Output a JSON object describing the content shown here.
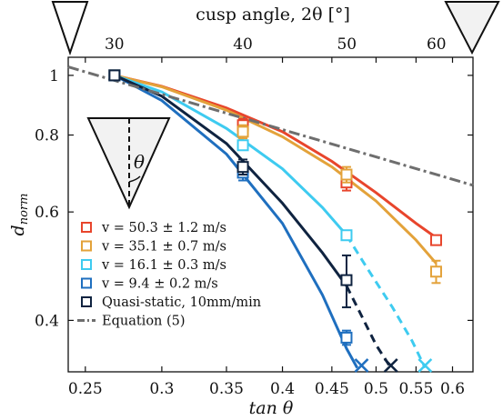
{
  "chart_data": {
    "type": "scatter",
    "title": "",
    "x_top_label": "cusp angle, 2θ [°]",
    "x_top_ticks": [
      30,
      40,
      50,
      60
    ],
    "xlabel": "tan θ",
    "ylabel": "d_norm",
    "ylabel_main": "d",
    "ylabel_sub": "norm",
    "xscale": "log",
    "yscale": "log",
    "xlim": [
      0.24,
      0.63
    ],
    "ylim": [
      0.33,
      1.07
    ],
    "x_ticks": [
      0.25,
      0.3,
      0.35,
      0.4,
      0.45,
      0.5,
      0.55,
      0.6
    ],
    "y_ticks": [
      0.4,
      0.6,
      0.8,
      1
    ],
    "grid": false,
    "legend_position": "lower-left",
    "legend": [
      "v = 50.3 ± 1.2 m/s",
      "v = 35.1 ± 0.7 m/s",
      "v = 16.1 ± 0.3 m/s",
      "v = 9.4 ± 0.2 m/s",
      "Quasi-static, 10mm/min",
      "Equation (5)"
    ],
    "inset_label": "θ",
    "series": [
      {
        "name": "v = 50.3 ± 1.2 m/s",
        "color": "#e8452c",
        "x": [
          0.268,
          0.364,
          0.466,
          0.577
        ],
        "y": [
          1.0,
          0.83,
          0.67,
          0.54
        ],
        "yerr": [
          0.0,
          0.02,
          0.02,
          0.0
        ],
        "fit_x": [
          0.268,
          0.3,
          0.35,
          0.4,
          0.45,
          0.5,
          0.55,
          0.577
        ],
        "fit_y": [
          1.0,
          0.96,
          0.885,
          0.81,
          0.725,
          0.645,
          0.575,
          0.545
        ],
        "fit_extrapolated": false
      },
      {
        "name": "v = 35.1 ± 0.7 m/s",
        "color": "#e3a23a",
        "x": [
          0.268,
          0.364,
          0.466,
          0.577
        ],
        "y": [
          1.0,
          0.81,
          0.69,
          0.48
        ],
        "yerr": [
          0.0,
          0.02,
          0.02,
          0.02
        ],
        "fit_x": [
          0.268,
          0.3,
          0.35,
          0.4,
          0.45,
          0.5,
          0.55,
          0.577
        ],
        "fit_y": [
          1.0,
          0.958,
          0.878,
          0.795,
          0.71,
          0.625,
          0.54,
          0.495
        ],
        "fit_extrapolated": false
      },
      {
        "name": "v = 16.1 ± 0.3 m/s",
        "color": "#3ecbf0",
        "x": [
          0.268,
          0.364,
          0.466
        ],
        "y": [
          1.0,
          0.77,
          0.55
        ],
        "yerr": [
          0.0,
          0.01,
          0.0
        ],
        "fit_x": [
          0.268,
          0.3,
          0.35,
          0.4,
          0.44,
          0.466
        ],
        "fit_y": [
          1.0,
          0.94,
          0.82,
          0.705,
          0.61,
          0.55
        ],
        "ext_x": [
          0.466,
          0.49,
          0.52,
          0.545,
          0.562
        ],
        "ext_y": [
          0.55,
          0.485,
          0.42,
          0.37,
          0.335
        ],
        "failure_x": 0.562,
        "fit_extrapolated": true
      },
      {
        "name": "v = 9.4 ± 0.2 m/s",
        "color": "#1f6fbf",
        "x": [
          0.268,
          0.364,
          0.466
        ],
        "y": [
          1.0,
          0.695,
          0.375
        ],
        "yerr": [
          0.0,
          0.02,
          0.01
        ],
        "fit_x": [
          0.268,
          0.3,
          0.35,
          0.4,
          0.44,
          0.466,
          0.478
        ],
        "fit_y": [
          1.0,
          0.91,
          0.745,
          0.575,
          0.44,
          0.36,
          0.335
        ],
        "fit_extrapolated": false
      },
      {
        "name": "Quasi-static, 10mm/min",
        "color": "#0f2340",
        "x": [
          0.268,
          0.364,
          0.466
        ],
        "y": [
          1.0,
          0.71,
          0.465
        ],
        "yerr": [
          0.0,
          0.02,
          0.045
        ],
        "fit_x": [
          0.268,
          0.3,
          0.35,
          0.4,
          0.44,
          0.466
        ],
        "fit_y": [
          1.0,
          0.925,
          0.775,
          0.62,
          0.515,
          0.455
        ],
        "ext_x": [
          0.466,
          0.48,
          0.5,
          0.518
        ],
        "ext_y": [
          0.455,
          0.415,
          0.365,
          0.335
        ],
        "failure_x": 0.518,
        "fit_extrapolated": true
      },
      {
        "name": "Equation (5)",
        "color": "#6e6e6e",
        "line_only": true,
        "fit_x": [
          0.24,
          0.63
        ],
        "fit_y": [
          1.032,
          0.663
        ]
      }
    ],
    "failure_marks": [
      {
        "x": 0.483,
        "color": "#1f6fbf"
      },
      {
        "x": 0.518,
        "color": "#0f2340"
      },
      {
        "x": 0.562,
        "color": "#3ecbf0"
      }
    ]
  }
}
